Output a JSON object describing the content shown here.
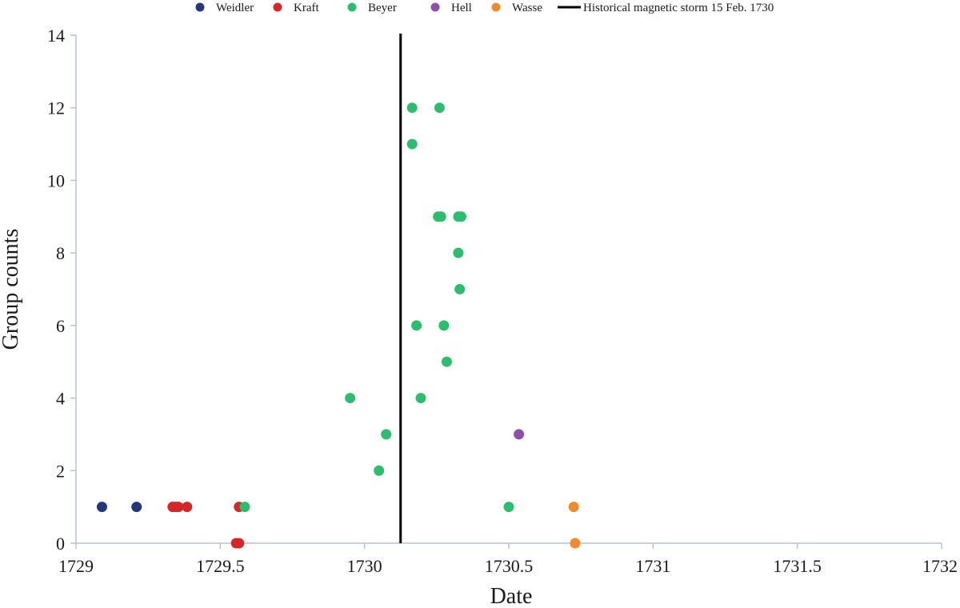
{
  "chart_data": {
    "type": "scatter",
    "title": "",
    "xlabel": "Date",
    "ylabel": "Group counts",
    "xlim": [
      1729,
      1732
    ],
    "ylim": [
      0,
      14
    ],
    "x_ticks": [
      "1729",
      "1729.5",
      "1730",
      "1730.5",
      "1731",
      "1731.5",
      "1732"
    ],
    "y_ticks": [
      "0",
      "2",
      "4",
      "6",
      "8",
      "10",
      "12",
      "14"
    ],
    "grid": false,
    "legend_position": "top",
    "series": [
      {
        "name": "Weidler",
        "color": "#23377a",
        "points": [
          [
            1729.09,
            1
          ],
          [
            1729.21,
            1
          ]
        ]
      },
      {
        "name": "Kraft",
        "color": "#d62728",
        "points": [
          [
            1729.335,
            1
          ],
          [
            1729.345,
            1
          ],
          [
            1729.355,
            1
          ],
          [
            1729.385,
            1
          ],
          [
            1729.565,
            1
          ],
          [
            1729.555,
            0
          ],
          [
            1729.565,
            0
          ]
        ]
      },
      {
        "name": "Beyer",
        "color": "#2dbd6e",
        "points": [
          [
            1729.585,
            1
          ],
          [
            1729.95,
            4
          ],
          [
            1730.05,
            2
          ],
          [
            1730.075,
            3
          ],
          [
            1730.165,
            12
          ],
          [
            1730.165,
            11
          ],
          [
            1730.18,
            6
          ],
          [
            1730.195,
            4
          ],
          [
            1730.26,
            12
          ],
          [
            1730.255,
            9
          ],
          [
            1730.265,
            9
          ],
          [
            1730.275,
            6
          ],
          [
            1730.285,
            5
          ],
          [
            1730.325,
            9
          ],
          [
            1730.335,
            9
          ],
          [
            1730.325,
            8
          ],
          [
            1730.33,
            7
          ],
          [
            1730.5,
            1
          ]
        ]
      },
      {
        "name": "Hell",
        "color": "#8e50a8",
        "points": [
          [
            1730.535,
            3
          ]
        ]
      },
      {
        "name": "Wasse",
        "color": "#f18a2b",
        "points": [
          [
            1730.725,
            1
          ],
          [
            1730.73,
            0
          ]
        ]
      }
    ],
    "vertical_line": {
      "name": "Historical magnetic storm 15 Feb. 1730",
      "x": 1730.125,
      "color": "#000000"
    }
  }
}
